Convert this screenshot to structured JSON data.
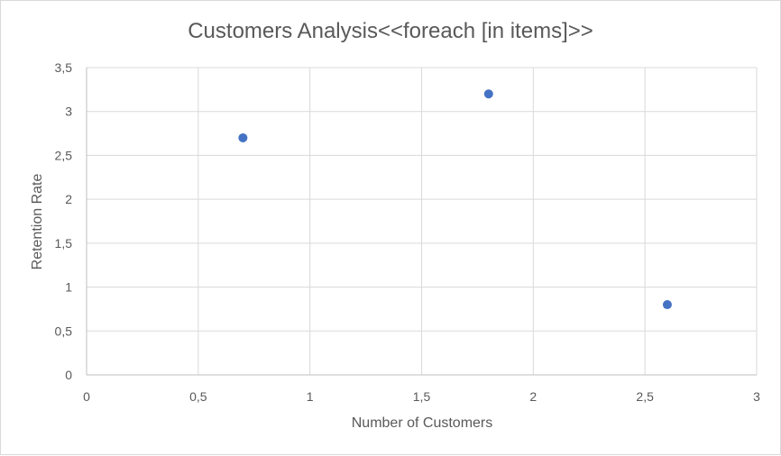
{
  "chart_data": {
    "type": "scatter",
    "title": "Customers Analysis<<foreach [in items]>>",
    "xlabel": "Number of Customers",
    "ylabel": "Retention Rate",
    "xlim": [
      0,
      3
    ],
    "ylim": [
      0,
      3.5
    ],
    "x_ticks": [
      "0",
      "0,5",
      "1",
      "1,5",
      "2",
      "2,5",
      "3"
    ],
    "y_ticks": [
      "0",
      "0,5",
      "1",
      "1,5",
      "2",
      "2,5",
      "3",
      "3,5"
    ],
    "grid": true,
    "legend": "none",
    "series": [
      {
        "color": "#4472c4",
        "points": [
          {
            "x": 0.7,
            "y": 2.7
          },
          {
            "x": 1.8,
            "y": 3.2
          },
          {
            "x": 2.6,
            "y": 0.8
          }
        ]
      }
    ]
  }
}
